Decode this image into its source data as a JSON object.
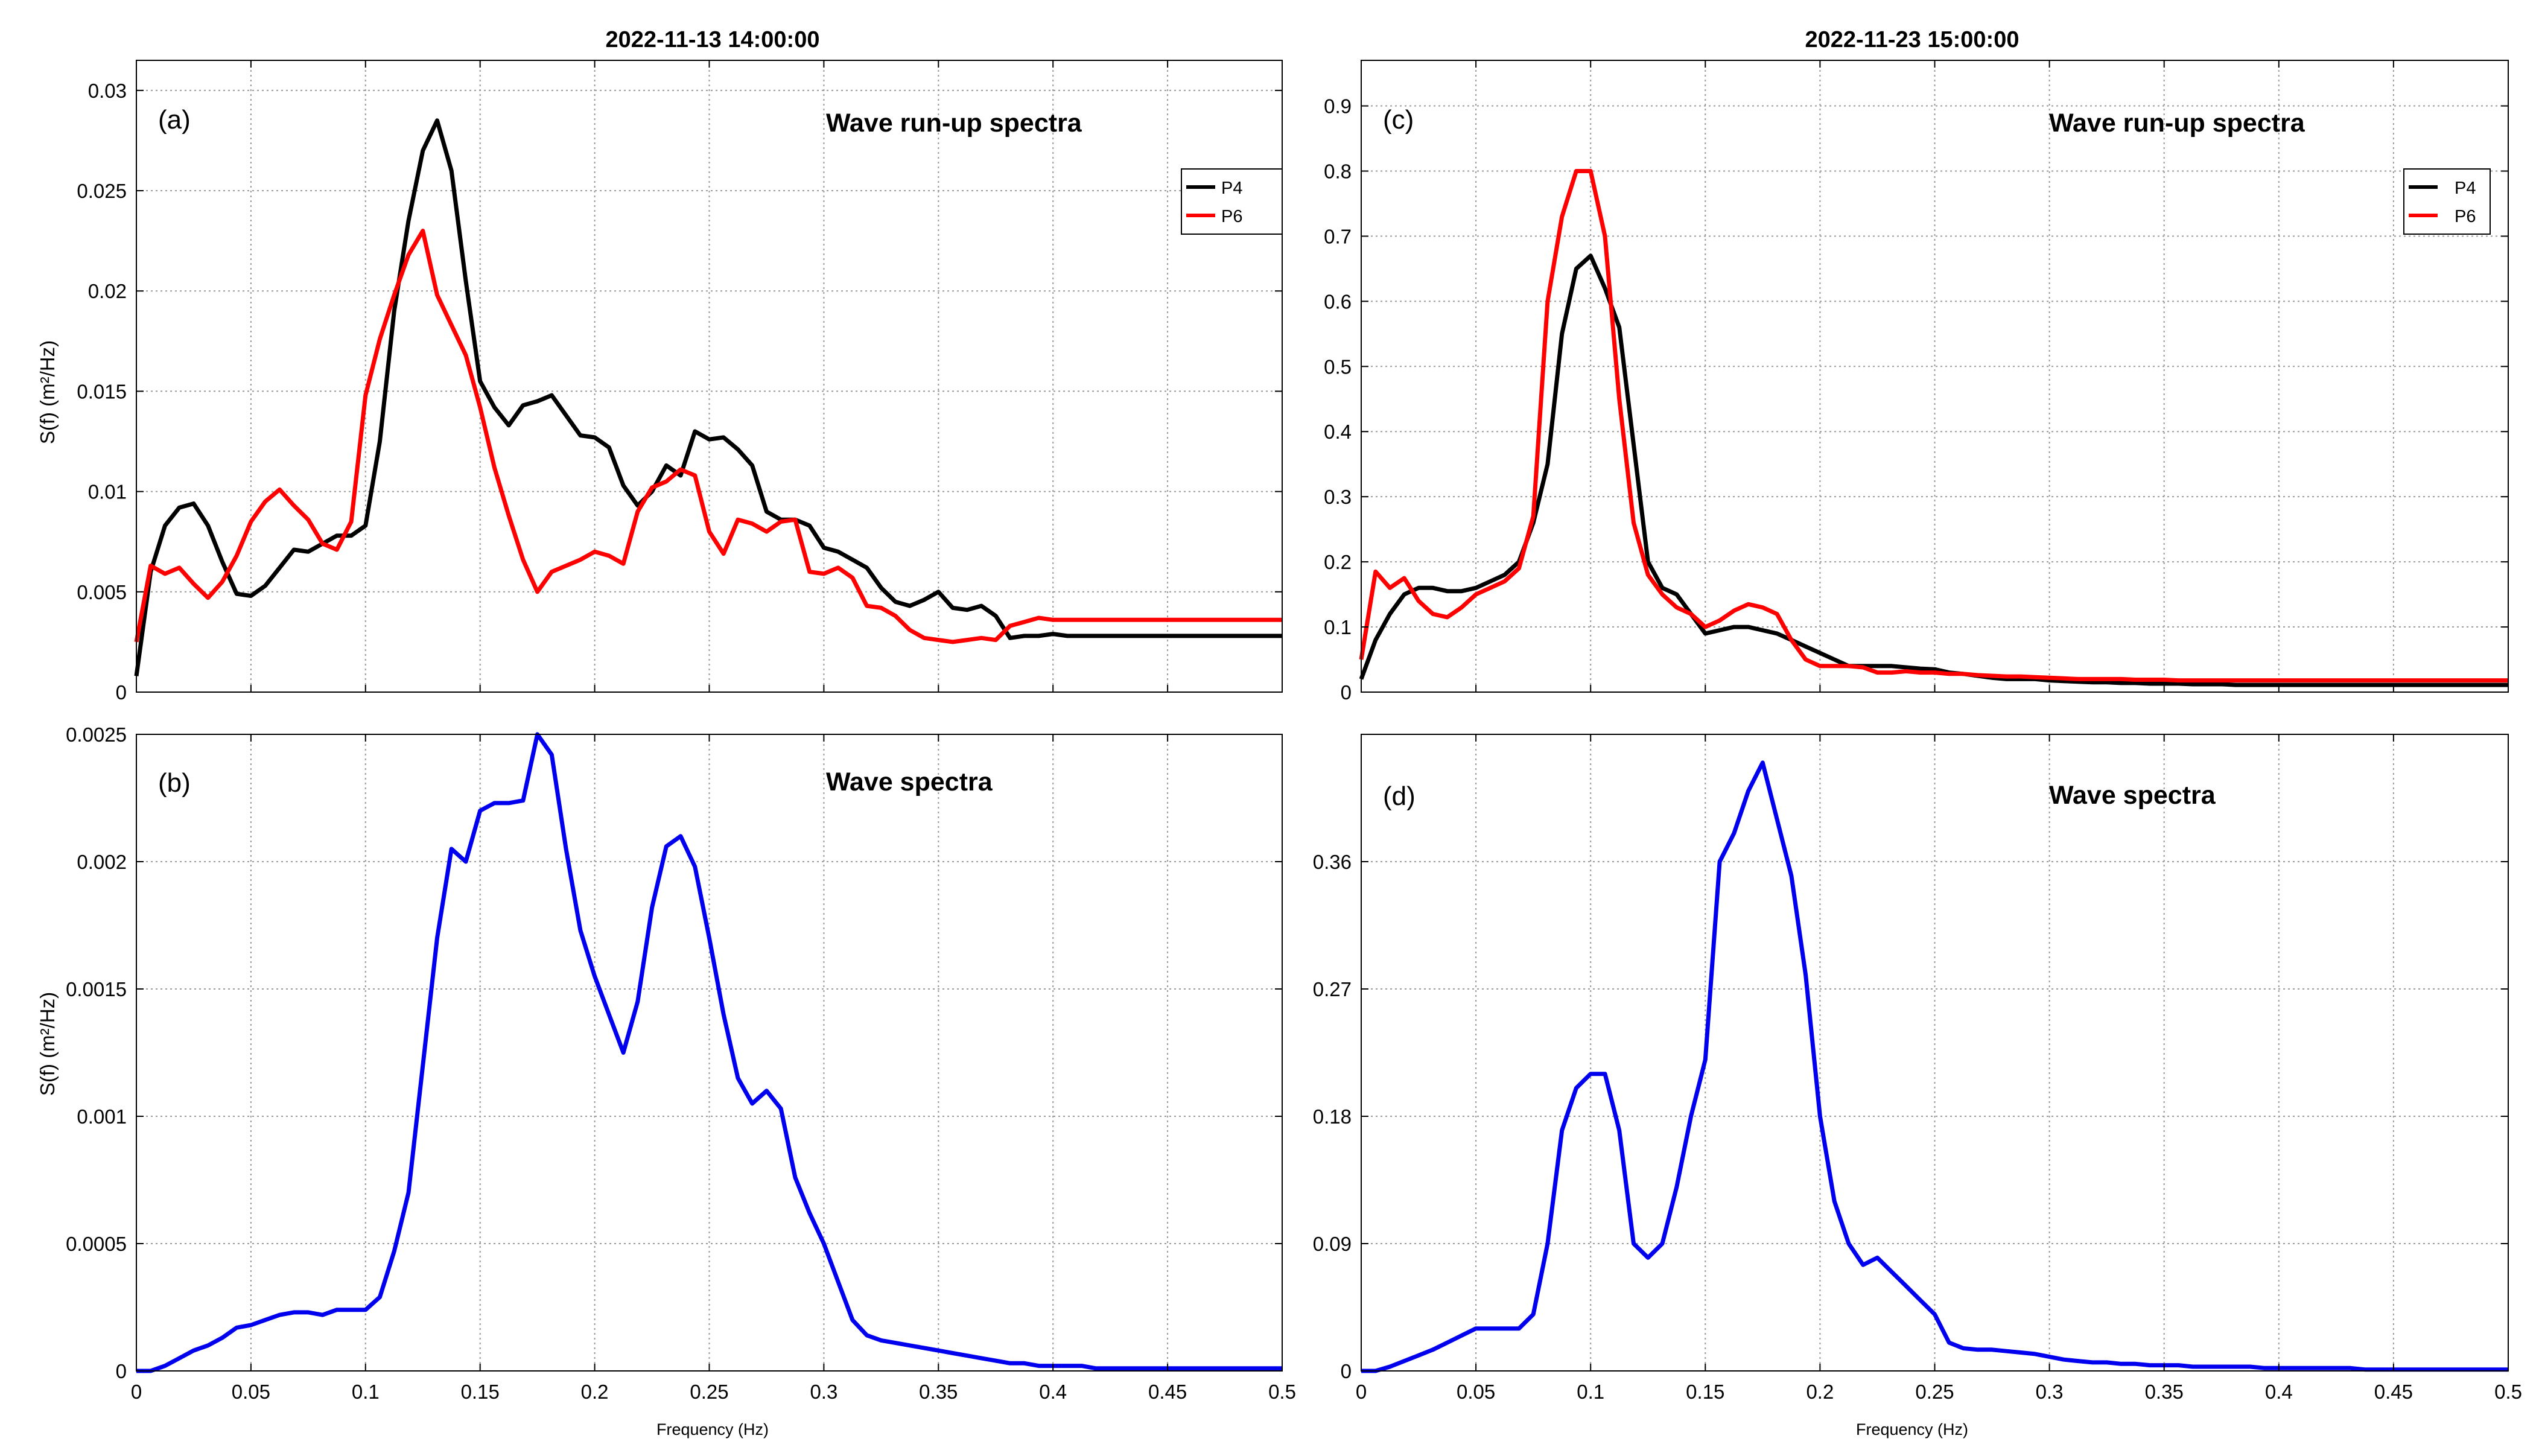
{
  "chart_data": [
    {
      "panel": "a",
      "type": "line",
      "title": "2022-11-13 14:00:00",
      "panel_label": "(a)",
      "annotation": "Wave run-up spectra",
      "xlabel": "",
      "ylabel": "S(f) (m²/Hz)",
      "xlim": [
        0,
        0.5
      ],
      "ylim": [
        0,
        0.0315
      ],
      "xticks": [
        "0",
        "0.05",
        "0.1",
        "0.15",
        "0.2",
        "0.25",
        "0.3",
        "0.35",
        "0.4",
        "0.45",
        "0.5"
      ],
      "yticks": [
        "0",
        "0.005",
        "0.01",
        "0.015",
        "0.02",
        "0.025",
        "0.03"
      ],
      "grid": true,
      "legend_position": "top-right",
      "x": [
        0,
        0.00625,
        0.0125,
        0.01875,
        0.025,
        0.03125,
        0.0375,
        0.04375,
        0.05,
        0.05625,
        0.0625,
        0.06875,
        0.075,
        0.08125,
        0.0875,
        0.09375,
        0.1,
        0.10625,
        0.1125,
        0.11875,
        0.125,
        0.13125,
        0.1375,
        0.14375,
        0.15,
        0.15625,
        0.1625,
        0.16875,
        0.175,
        0.18125,
        0.1875,
        0.19375,
        0.2,
        0.20625,
        0.2125,
        0.21875,
        0.225,
        0.23125,
        0.2375,
        0.24375,
        0.25,
        0.25625,
        0.2625,
        0.26875,
        0.275,
        0.28125,
        0.2875,
        0.29375,
        0.3,
        0.30625,
        0.3125,
        0.31875,
        0.325,
        0.33125,
        0.3375,
        0.34375,
        0.35,
        0.35625,
        0.3625,
        0.36875,
        0.375,
        0.38125,
        0.3875,
        0.39375,
        0.4,
        0.40625,
        0.4125,
        0.41875,
        0.425,
        0.43125,
        0.4375,
        0.44375,
        0.45,
        0.45625,
        0.4625,
        0.46875,
        0.475,
        0.48125,
        0.4875,
        0.49375,
        0.5
      ],
      "series": [
        {
          "name": "P4",
          "color": "#000000",
          "values": [
            0.0008,
            0.006,
            0.0083,
            0.0092,
            0.0094,
            0.0083,
            0.0065,
            0.0049,
            0.0048,
            0.0053,
            0.0062,
            0.0071,
            0.007,
            0.0074,
            0.0078,
            0.0078,
            0.0083,
            0.0125,
            0.019,
            0.0235,
            0.027,
            0.0285,
            0.026,
            0.0205,
            0.0155,
            0.0142,
            0.0133,
            0.0143,
            0.0145,
            0.0148,
            0.0138,
            0.0128,
            0.0127,
            0.0122,
            0.0103,
            0.0093,
            0.01,
            0.0113,
            0.0108,
            0.013,
            0.0126,
            0.0127,
            0.0121,
            0.0113,
            0.009,
            0.0086,
            0.0086,
            0.0083,
            0.0072,
            0.007,
            0.0066,
            0.0062,
            0.0052,
            0.0045,
            0.0043,
            0.0046,
            0.005,
            0.0042,
            0.0041,
            0.0043,
            0.0038,
            0.0027,
            0.0028,
            0.0028,
            0.0029,
            0.0028,
            0.0028,
            0.0028,
            0.0028,
            0.0028,
            0.0028,
            0.0028,
            0.0028,
            0.0028,
            0.0028,
            0.0028,
            0.0028,
            0.0028,
            0.0028,
            0.0028,
            0.0028
          ]
        },
        {
          "name": "P6",
          "color": "#ff0000",
          "values": [
            0.0025,
            0.0063,
            0.0059,
            0.0062,
            0.0054,
            0.0047,
            0.0055,
            0.0068,
            0.0085,
            0.0095,
            0.0101,
            0.0093,
            0.0086,
            0.0074,
            0.0071,
            0.0085,
            0.0148,
            0.0176,
            0.0198,
            0.0218,
            0.023,
            0.0198,
            0.0183,
            0.0168,
            0.0142,
            0.0112,
            0.0088,
            0.0066,
            0.005,
            0.006,
            0.0063,
            0.0066,
            0.007,
            0.0068,
            0.0064,
            0.009,
            0.0102,
            0.0105,
            0.0111,
            0.0108,
            0.008,
            0.0069,
            0.0086,
            0.0084,
            0.008,
            0.0085,
            0.0086,
            0.006,
            0.0059,
            0.0062,
            0.0057,
            0.0043,
            0.0042,
            0.0038,
            0.0031,
            0.0027,
            0.0026,
            0.0025,
            0.0026,
            0.0027,
            0.0026,
            0.0033,
            0.0035,
            0.0037,
            0.0036,
            0.0036,
            0.0036,
            0.0036,
            0.0036,
            0.0036,
            0.0036,
            0.0036,
            0.0036,
            0.0036,
            0.0036,
            0.0036,
            0.0036,
            0.0036,
            0.0036,
            0.0036,
            0.0036
          ]
        }
      ]
    },
    {
      "panel": "b",
      "type": "line",
      "title": "",
      "panel_label": "(b)",
      "annotation": "Wave spectra",
      "xlabel": "Frequency (Hz)",
      "ylabel": "S(f) (m²/Hz)",
      "xlim": [
        0,
        0.5
      ],
      "ylim": [
        0,
        0.0025
      ],
      "xticks": [
        "0",
        "0.05",
        "0.1",
        "0.15",
        "0.2",
        "0.25",
        "0.3",
        "0.35",
        "0.4",
        "0.45",
        "0.5"
      ],
      "yticks": [
        "0",
        "0.0005",
        "0.001",
        "0.0015",
        "0.002",
        "0.0025"
      ],
      "grid": true,
      "x": [
        0,
        0.00625,
        0.0125,
        0.01875,
        0.025,
        0.03125,
        0.0375,
        0.04375,
        0.05,
        0.05625,
        0.0625,
        0.06875,
        0.075,
        0.08125,
        0.0875,
        0.09375,
        0.1,
        0.10625,
        0.1125,
        0.11875,
        0.125,
        0.13125,
        0.1375,
        0.14375,
        0.15,
        0.15625,
        0.1625,
        0.16875,
        0.175,
        0.18125,
        0.1875,
        0.19375,
        0.2,
        0.20625,
        0.2125,
        0.21875,
        0.225,
        0.23125,
        0.2375,
        0.24375,
        0.25,
        0.25625,
        0.2625,
        0.26875,
        0.275,
        0.28125,
        0.2875,
        0.29375,
        0.3,
        0.30625,
        0.3125,
        0.31875,
        0.325,
        0.33125,
        0.3375,
        0.34375,
        0.35,
        0.35625,
        0.3625,
        0.36875,
        0.375,
        0.38125,
        0.3875,
        0.39375,
        0.4,
        0.40625,
        0.4125,
        0.41875,
        0.425,
        0.43125,
        0.4375,
        0.44375,
        0.45,
        0.45625,
        0.4625,
        0.46875,
        0.475,
        0.48125,
        0.4875,
        0.49375,
        0.5
      ],
      "series": [
        {
          "name": "",
          "color": "#0000ee",
          "values": [
            0,
            0,
            2e-05,
            5e-05,
            8e-05,
            0.0001,
            0.00013,
            0.00017,
            0.00018,
            0.0002,
            0.00022,
            0.00023,
            0.00023,
            0.00022,
            0.00024,
            0.00024,
            0.00024,
            0.00029,
            0.00047,
            0.0007,
            0.0012,
            0.0017,
            0.00205,
            0.002,
            0.0022,
            0.00223,
            0.00223,
            0.00224,
            0.0025,
            0.00242,
            0.00205,
            0.00173,
            0.00155,
            0.0014,
            0.00125,
            0.00145,
            0.00182,
            0.00206,
            0.0021,
            0.00198,
            0.0017,
            0.0014,
            0.00115,
            0.00105,
            0.0011,
            0.00103,
            0.00076,
            0.00062,
            0.0005,
            0.00035,
            0.0002,
            0.00014,
            0.00012,
            0.00011,
            0.0001,
            9e-05,
            8e-05,
            7e-05,
            6e-05,
            5e-05,
            4e-05,
            3e-05,
            3e-05,
            2e-05,
            2e-05,
            2e-05,
            2e-05,
            1e-05,
            1e-05,
            1e-05,
            1e-05,
            1e-05,
            1e-05,
            1e-05,
            1e-05,
            1e-05,
            1e-05,
            1e-05,
            1e-05,
            1e-05,
            1e-05
          ]
        }
      ]
    },
    {
      "panel": "c",
      "type": "line",
      "title": "2022-11-23 15:00:00",
      "panel_label": "(c)",
      "annotation": "Wave run-up spectra",
      "xlabel": "",
      "ylabel": "",
      "xlim": [
        0,
        0.5
      ],
      "ylim": [
        0,
        0.97
      ],
      "xticks": [
        "0",
        "0.05",
        "0.1",
        "0.15",
        "0.2",
        "0.25",
        "0.3",
        "0.35",
        "0.4",
        "0.45",
        "0.5"
      ],
      "yticks": [
        "0",
        "0.1",
        "0.2",
        "0.3",
        "0.4",
        "0.5",
        "0.6",
        "0.7",
        "0.8",
        "0.9"
      ],
      "grid": true,
      "legend_position": "top-right",
      "x": [
        0,
        0.00625,
        0.0125,
        0.01875,
        0.025,
        0.03125,
        0.0375,
        0.04375,
        0.05,
        0.05625,
        0.0625,
        0.06875,
        0.075,
        0.08125,
        0.0875,
        0.09375,
        0.1,
        0.10625,
        0.1125,
        0.11875,
        0.125,
        0.13125,
        0.1375,
        0.14375,
        0.15,
        0.15625,
        0.1625,
        0.16875,
        0.175,
        0.18125,
        0.1875,
        0.19375,
        0.2,
        0.20625,
        0.2125,
        0.21875,
        0.225,
        0.23125,
        0.2375,
        0.24375,
        0.25,
        0.25625,
        0.2625,
        0.26875,
        0.275,
        0.28125,
        0.2875,
        0.29375,
        0.3,
        0.30625,
        0.3125,
        0.31875,
        0.325,
        0.33125,
        0.3375,
        0.34375,
        0.35,
        0.35625,
        0.3625,
        0.36875,
        0.375,
        0.38125,
        0.3875,
        0.39375,
        0.4,
        0.40625,
        0.4125,
        0.41875,
        0.425,
        0.43125,
        0.4375,
        0.44375,
        0.45,
        0.45625,
        0.4625,
        0.46875,
        0.475,
        0.48125,
        0.4875,
        0.49375,
        0.5
      ],
      "series": [
        {
          "name": "P4",
          "color": "#000000",
          "values": [
            0.02,
            0.08,
            0.12,
            0.15,
            0.16,
            0.16,
            0.155,
            0.155,
            0.16,
            0.17,
            0.18,
            0.2,
            0.26,
            0.35,
            0.55,
            0.65,
            0.67,
            0.62,
            0.56,
            0.38,
            0.2,
            0.16,
            0.15,
            0.12,
            0.09,
            0.095,
            0.1,
            0.1,
            0.095,
            0.09,
            0.08,
            0.07,
            0.06,
            0.05,
            0.04,
            0.04,
            0.04,
            0.04,
            0.038,
            0.036,
            0.035,
            0.03,
            0.028,
            0.025,
            0.022,
            0.02,
            0.02,
            0.02,
            0.018,
            0.017,
            0.016,
            0.015,
            0.015,
            0.014,
            0.014,
            0.013,
            0.013,
            0.013,
            0.012,
            0.012,
            0.012,
            0.011,
            0.011,
            0.011,
            0.011,
            0.011,
            0.011,
            0.011,
            0.011,
            0.011,
            0.011,
            0.011,
            0.011,
            0.011,
            0.011,
            0.011,
            0.011,
            0.011,
            0.011,
            0.011,
            0.011
          ]
        },
        {
          "name": "P6",
          "color": "#ff0000",
          "values": [
            0.05,
            0.185,
            0.16,
            0.175,
            0.14,
            0.12,
            0.115,
            0.13,
            0.15,
            0.16,
            0.17,
            0.19,
            0.27,
            0.6,
            0.73,
            0.8,
            0.8,
            0.7,
            0.45,
            0.26,
            0.18,
            0.15,
            0.13,
            0.12,
            0.1,
            0.11,
            0.125,
            0.135,
            0.13,
            0.12,
            0.08,
            0.05,
            0.04,
            0.04,
            0.04,
            0.038,
            0.03,
            0.03,
            0.032,
            0.03,
            0.03,
            0.028,
            0.028,
            0.026,
            0.025,
            0.024,
            0.024,
            0.023,
            0.022,
            0.021,
            0.02,
            0.02,
            0.02,
            0.02,
            0.019,
            0.019,
            0.019,
            0.018,
            0.018,
            0.018,
            0.018,
            0.018,
            0.018,
            0.018,
            0.018,
            0.018,
            0.018,
            0.018,
            0.018,
            0.018,
            0.018,
            0.018,
            0.018,
            0.018,
            0.018,
            0.018,
            0.018,
            0.018,
            0.018,
            0.018,
            0.018
          ]
        }
      ]
    },
    {
      "panel": "d",
      "type": "line",
      "title": "",
      "panel_label": "(d)",
      "annotation": "Wave spectra",
      "xlabel": "Frequency (Hz)",
      "ylabel": "",
      "xlim": [
        0,
        0.5
      ],
      "ylim": [
        0,
        0.45
      ],
      "xticks": [
        "0",
        "0.05",
        "0.1",
        "0.15",
        "0.2",
        "0.25",
        "0.3",
        "0.35",
        "0.4",
        "0.45",
        "0.5"
      ],
      "yticks": [
        "0",
        "0.09",
        "0.18",
        "0.27",
        "0.36"
      ],
      "grid": true,
      "x": [
        0,
        0.00625,
        0.0125,
        0.01875,
        0.025,
        0.03125,
        0.0375,
        0.04375,
        0.05,
        0.05625,
        0.0625,
        0.06875,
        0.075,
        0.08125,
        0.0875,
        0.09375,
        0.1,
        0.10625,
        0.1125,
        0.11875,
        0.125,
        0.13125,
        0.1375,
        0.14375,
        0.15,
        0.15625,
        0.1625,
        0.16875,
        0.175,
        0.18125,
        0.1875,
        0.19375,
        0.2,
        0.20625,
        0.2125,
        0.21875,
        0.225,
        0.23125,
        0.2375,
        0.24375,
        0.25,
        0.25625,
        0.2625,
        0.26875,
        0.275,
        0.28125,
        0.2875,
        0.29375,
        0.3,
        0.30625,
        0.3125,
        0.31875,
        0.325,
        0.33125,
        0.3375,
        0.34375,
        0.35,
        0.35625,
        0.3625,
        0.36875,
        0.375,
        0.38125,
        0.3875,
        0.39375,
        0.4,
        0.40625,
        0.4125,
        0.41875,
        0.425,
        0.43125,
        0.4375,
        0.44375,
        0.45,
        0.45625,
        0.4625,
        0.46875,
        0.475,
        0.48125,
        0.4875,
        0.49375,
        0.5
      ],
      "series": [
        {
          "name": "",
          "color": "#0000ee",
          "values": [
            0,
            0,
            0.003,
            0.007,
            0.011,
            0.015,
            0.02,
            0.025,
            0.03,
            0.03,
            0.03,
            0.03,
            0.04,
            0.09,
            0.17,
            0.2,
            0.21,
            0.21,
            0.17,
            0.09,
            0.08,
            0.09,
            0.13,
            0.18,
            0.22,
            0.36,
            0.38,
            0.41,
            0.43,
            0.39,
            0.35,
            0.28,
            0.18,
            0.12,
            0.09,
            0.075,
            0.08,
            0.07,
            0.06,
            0.05,
            0.04,
            0.02,
            0.016,
            0.015,
            0.015,
            0.014,
            0.013,
            0.012,
            0.01,
            0.008,
            0.007,
            0.006,
            0.006,
            0.005,
            0.005,
            0.004,
            0.004,
            0.004,
            0.003,
            0.003,
            0.003,
            0.003,
            0.003,
            0.002,
            0.002,
            0.002,
            0.002,
            0.002,
            0.002,
            0.002,
            0.001,
            0.001,
            0.001,
            0.001,
            0.001,
            0.001,
            0.001,
            0.001,
            0.001,
            0.001,
            0.001
          ]
        }
      ]
    }
  ]
}
